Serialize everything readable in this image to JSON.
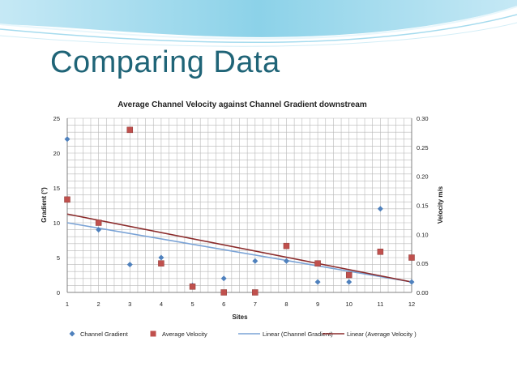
{
  "slide": {
    "title": "Comparing Data"
  },
  "colors": {
    "title": "#1f6477",
    "gradient_marker": "#4f81bd",
    "velocity_marker": "#c0504d",
    "gradient_trend": "#7aa3d6",
    "velocity_trend": "#8b2b2b",
    "grid": "#b8b8b8"
  },
  "chart_data": {
    "type": "scatter",
    "title": "Average Channel Velocity against Channel Gradient downstream",
    "xlabel": "Sites",
    "ylabel": "Gradient (°)",
    "y2label": "Velocity m/s",
    "xlim": [
      1,
      12
    ],
    "xticks": [
      1,
      2,
      3,
      4,
      5,
      6,
      7,
      8,
      9,
      10,
      11,
      12
    ],
    "ylim": [
      0,
      25
    ],
    "yticks": [
      0,
      5,
      10,
      15,
      20,
      25
    ],
    "y2lim": [
      0,
      0.3
    ],
    "y2ticks": [
      "0.00",
      "0.05",
      "0.10",
      "0.15",
      "0.20",
      "0.25",
      "0.30"
    ],
    "grid": true,
    "legend_position": "bottom",
    "series": [
      {
        "name": "Channel Gradient",
        "axis": "left",
        "marker": "diamond",
        "x": [
          1,
          2,
          3,
          4,
          5,
          6,
          7,
          8,
          9,
          10,
          11,
          12
        ],
        "values": [
          22,
          9,
          4,
          5,
          1,
          2,
          4.5,
          4.5,
          1.5,
          1.5,
          12,
          1.5
        ]
      },
      {
        "name": "Average Velocity",
        "axis": "right",
        "marker": "square",
        "x": [
          1,
          2,
          3,
          4,
          5,
          6,
          7,
          8,
          9,
          10,
          11,
          12
        ],
        "values": [
          0.16,
          0.12,
          0.28,
          0.05,
          0.01,
          0.0,
          0.0,
          0.08,
          0.05,
          0.03,
          0.07,
          0.06
        ]
      }
    ],
    "trendlines": [
      {
        "name": "Linear (Channel Gradient)",
        "axis": "left",
        "from": [
          1,
          10
        ],
        "to": [
          12,
          1.5
        ]
      },
      {
        "name": "Linear (Average Velocity )",
        "axis": "right",
        "from": [
          1,
          0.135
        ],
        "to": [
          12,
          0.018
        ]
      }
    ]
  }
}
